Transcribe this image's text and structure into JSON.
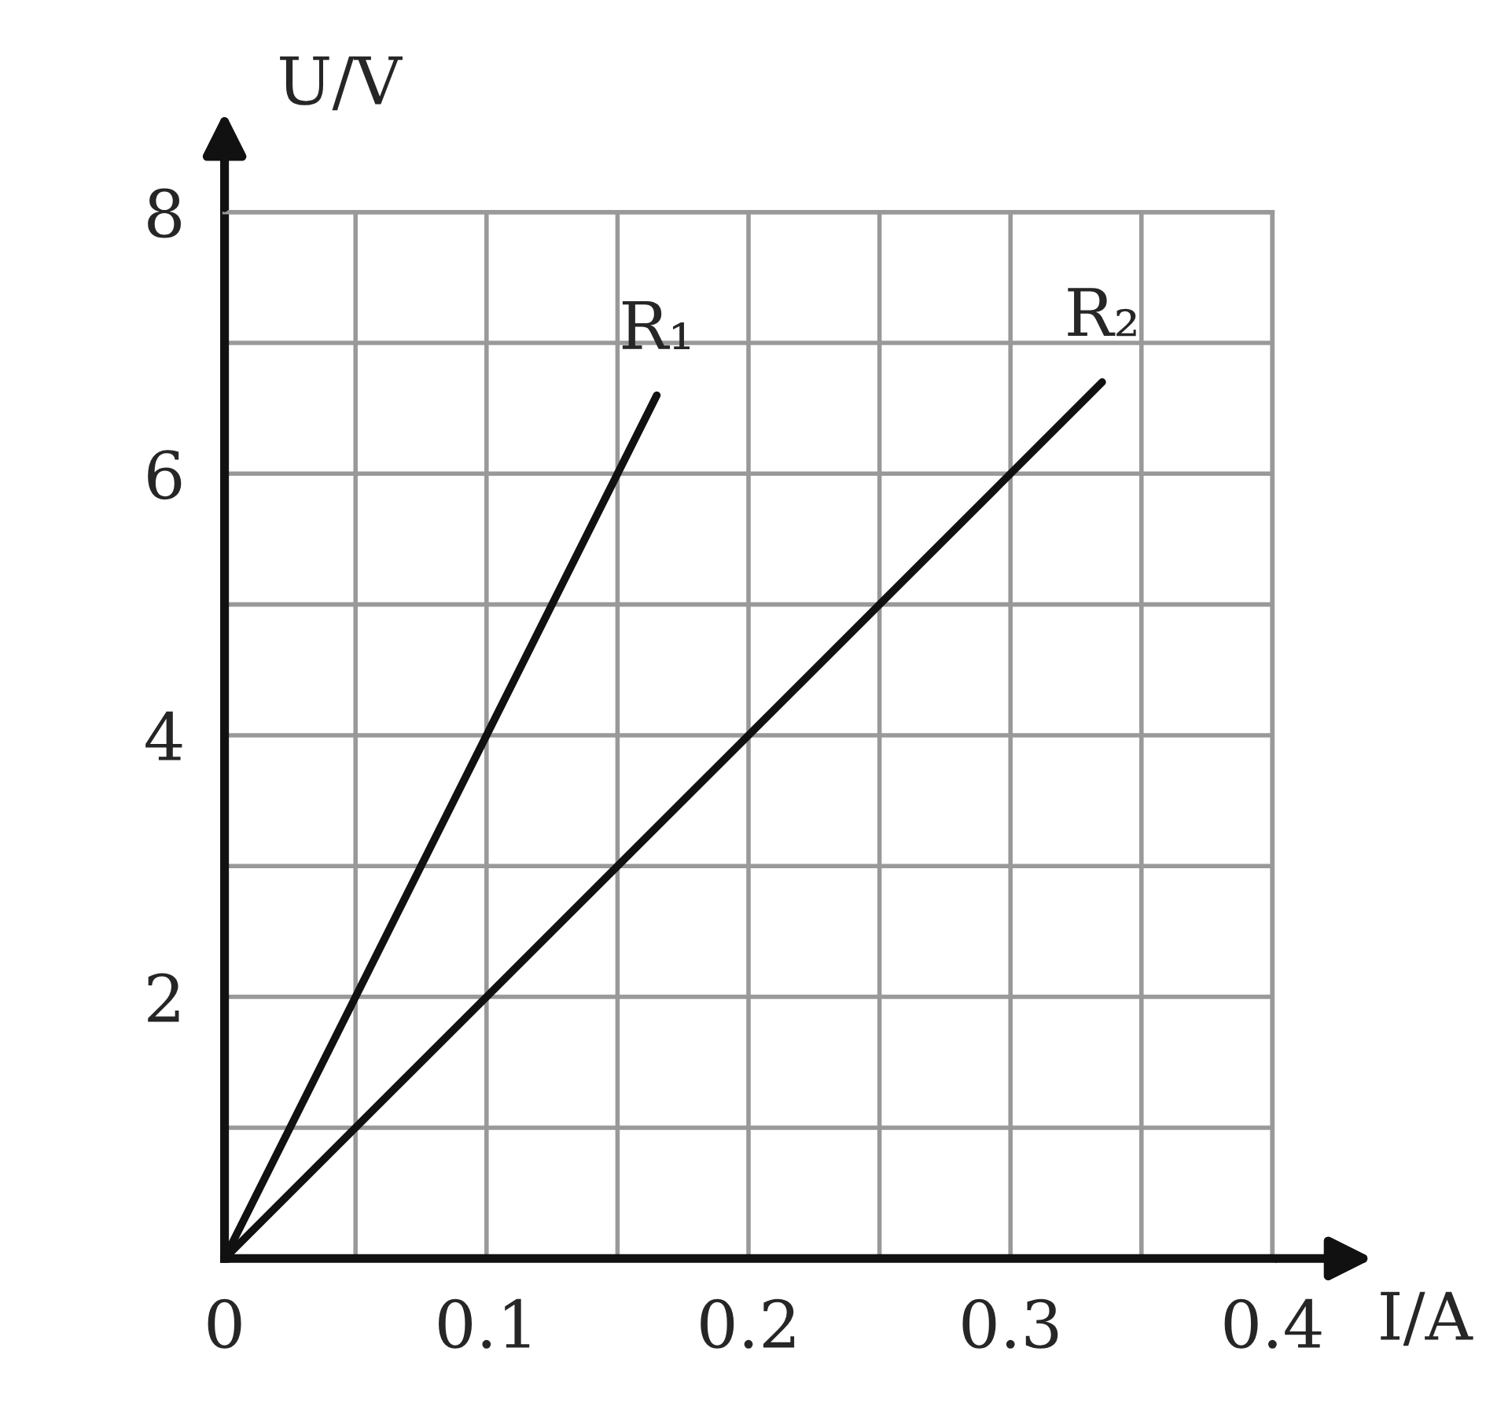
{
  "chart_data": {
    "type": "line",
    "xlabel": "I/A",
    "ylabel": "U/V",
    "series": [
      {
        "name": "R₁",
        "color": "#111111",
        "x": [
          0,
          0.1,
          0.165
        ],
        "values": [
          0,
          4,
          6.6
        ]
      },
      {
        "name": "R₂",
        "color": "#111111",
        "x": [
          0,
          0.1,
          0.335
        ],
        "values": [
          0,
          2,
          6.7
        ]
      }
    ],
    "xlim": [
      0,
      0.4
    ],
    "ylim": [
      0,
      8
    ],
    "xticks": [
      0,
      {
        "value": 0.05,
        "label": null
      },
      0.1,
      {
        "value": 0.15,
        "label": null
      },
      0.2,
      {
        "value": 0.25,
        "label": null
      },
      0.3,
      {
        "value": 0.35,
        "label": null
      },
      0.4
    ],
    "yticks": [
      {
        "value": 1,
        "label": null
      },
      2,
      {
        "value": 3,
        "label": null
      },
      4,
      {
        "value": 5,
        "label": null
      },
      6,
      {
        "value": 7,
        "label": null
      },
      8
    ],
    "grid": true,
    "marker": "none",
    "line_style": "solid"
  }
}
